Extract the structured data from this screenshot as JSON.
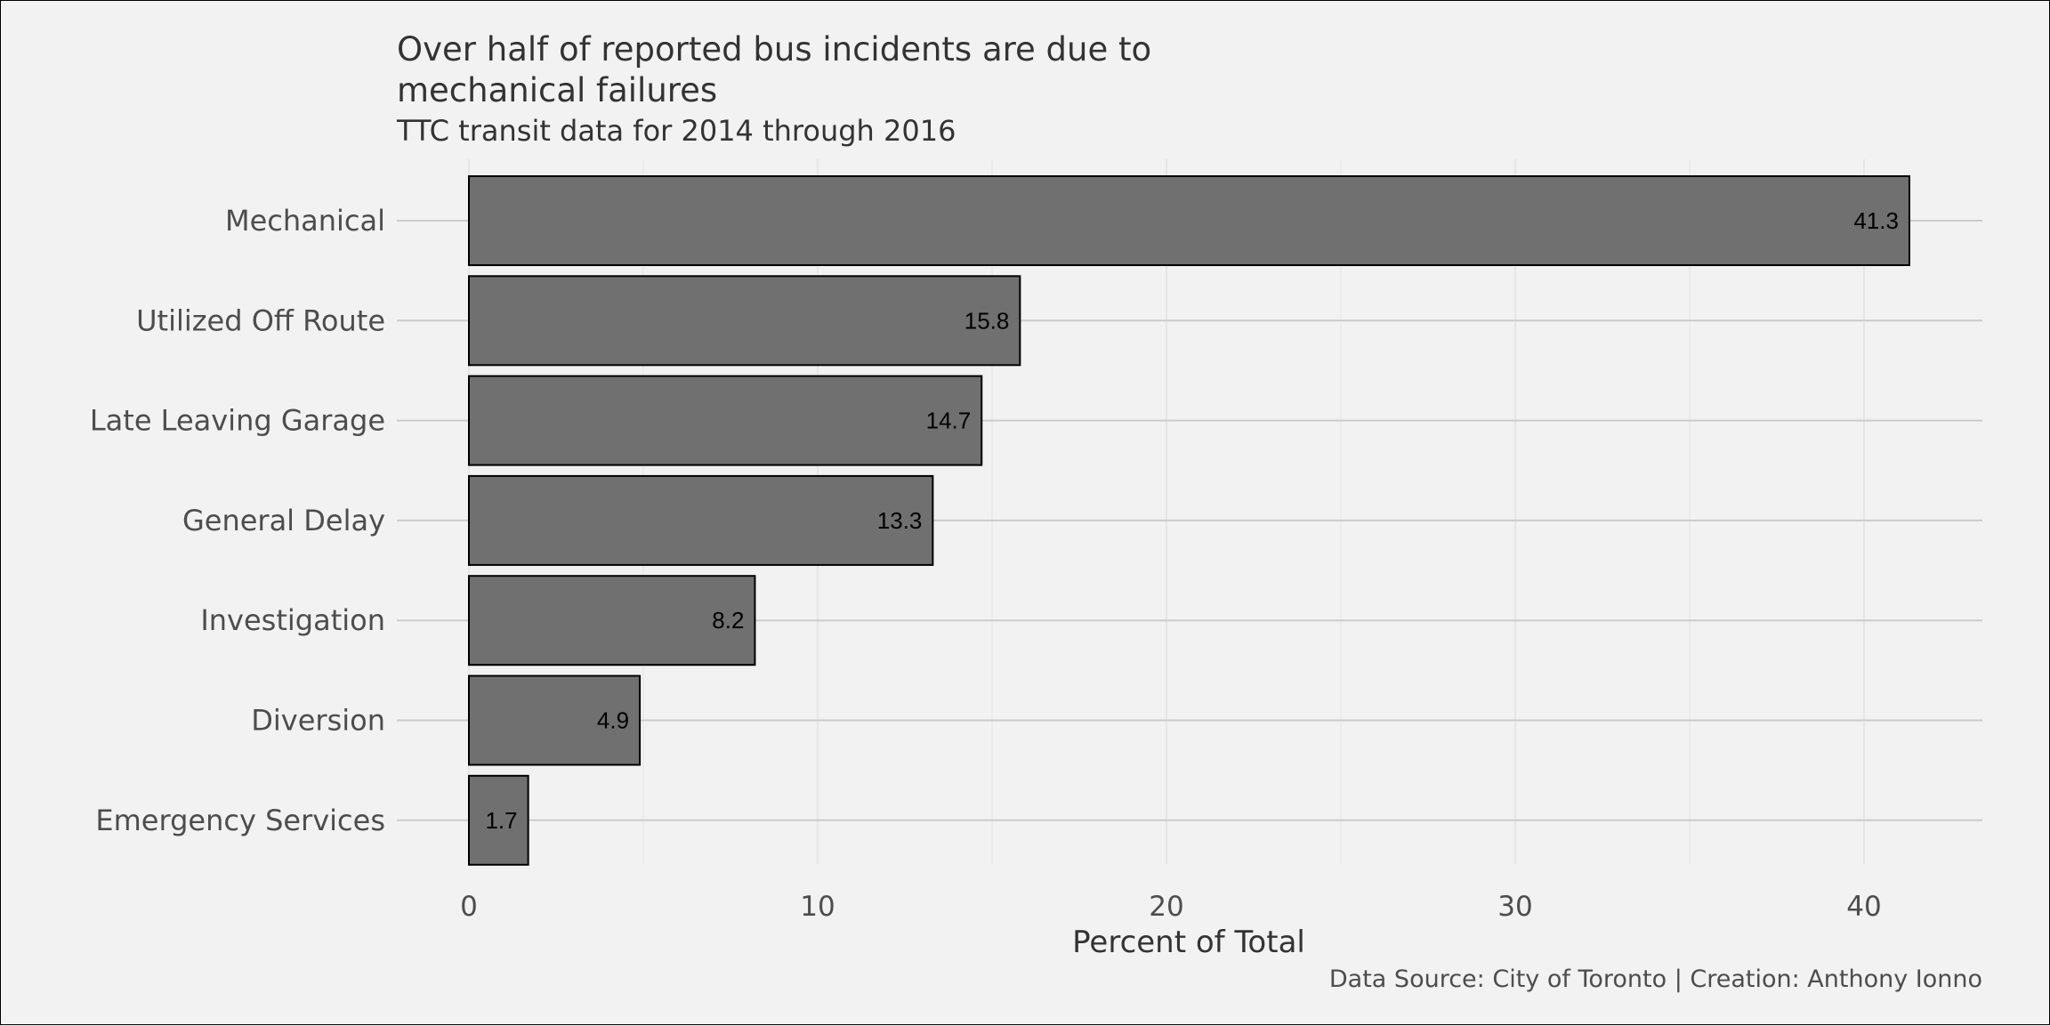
{
  "chart_data": {
    "type": "bar",
    "orientation": "horizontal",
    "title_lines": [
      "Over half of reported bus incidents are due to",
      "mechanical failures"
    ],
    "subtitle": "TTC transit data for 2014 through 2016",
    "xlabel": "Percent of Total",
    "ylabel": "",
    "caption": "Data Source: City of Toronto | Creation: Anthony Ionno",
    "categories": [
      "Mechanical",
      "Utilized Off Route",
      "Late Leaving Garage",
      "General Delay",
      "Investigation",
      "Diversion",
      "Emergency Services"
    ],
    "values": [
      41.3,
      15.8,
      14.7,
      13.3,
      8.2,
      4.9,
      1.7
    ],
    "data_labels": [
      "41.3",
      "15.8",
      "14.7",
      "13.3",
      "8.2",
      "4.9",
      "1.7"
    ],
    "x_ticks": [
      0,
      10,
      20,
      30,
      40
    ],
    "x_tick_labels": [
      "0",
      "10",
      "20",
      "30",
      "40"
    ],
    "xlim": [
      -2.07,
      43.37
    ],
    "grid": true,
    "legend": "none",
    "colors": {
      "background": "#f2f2f2",
      "bar_fill": "#707070",
      "bar_stroke": "#000000",
      "grid_major": "#cbcbcb",
      "grid_minor": "#e6e6e6",
      "title": "#333333",
      "axis_text": "#4d4d4d"
    }
  }
}
